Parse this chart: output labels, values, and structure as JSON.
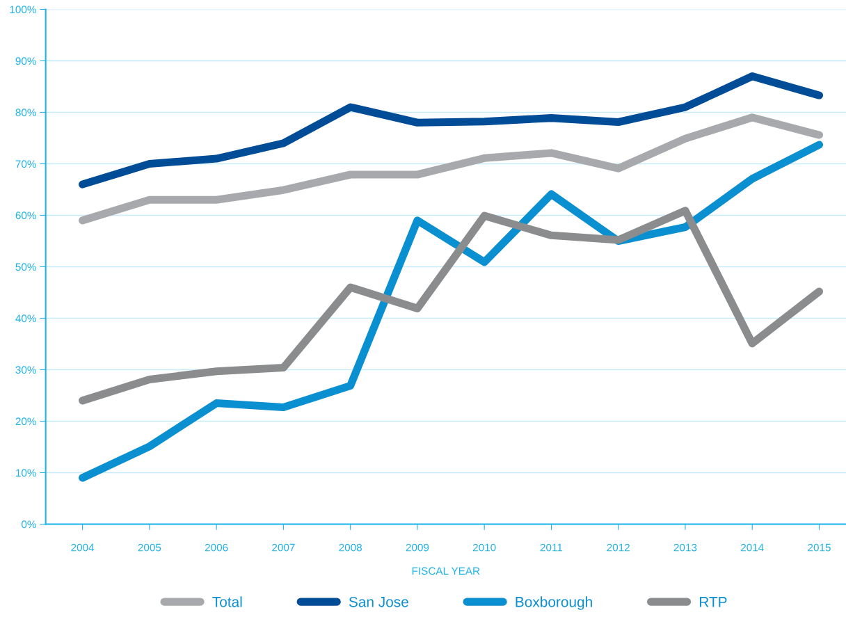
{
  "chart_data": {
    "type": "line",
    "xlabel": "FISCAL YEAR",
    "categories": [
      "2004",
      "2005",
      "2006",
      "2007",
      "2008",
      "2009",
      "2010",
      "2011",
      "2012",
      "2013",
      "2014",
      "2015"
    ],
    "series": [
      {
        "name": "Total",
        "color": "#a7a9ac",
        "values": [
          59.0,
          63.0,
          63.0,
          64.9,
          67.9,
          67.9,
          71.1,
          72.1,
          69.1,
          74.9,
          79.0,
          75.6
        ]
      },
      {
        "name": "San Jose",
        "color": "#004c97",
        "values": [
          66.0,
          70.0,
          71.0,
          74.0,
          81.0,
          78.0,
          78.2,
          78.9,
          78.1,
          81.0,
          87.0,
          83.3
        ]
      },
      {
        "name": "Boxborough",
        "color": "#0a8fd0",
        "values": [
          9.0,
          15.1,
          23.5,
          22.7,
          26.9,
          59.0,
          50.9,
          64.1,
          55.0,
          57.7,
          67.1,
          73.7
        ]
      },
      {
        "name": "RTP",
        "color": "#8a8c8e",
        "values": [
          24.0,
          28.1,
          29.7,
          30.4,
          46.0,
          41.9,
          59.9,
          56.1,
          55.2,
          60.9,
          35.1,
          45.2
        ]
      }
    ],
    "ylim": [
      0,
      100
    ],
    "yticks": [
      {
        "value": 0,
        "label": "0%"
      },
      {
        "value": 10,
        "label": "10%"
      },
      {
        "value": 20,
        "label": "20%"
      },
      {
        "value": 30,
        "label": "30%"
      },
      {
        "value": 40,
        "label": "40%"
      },
      {
        "value": 50,
        "label": "50%"
      },
      {
        "value": 60,
        "label": "60%"
      },
      {
        "value": 70,
        "label": "70%"
      },
      {
        "value": 80,
        "label": "80%"
      },
      {
        "value": 90,
        "label": "90%"
      },
      {
        "value": 100,
        "label": "100%"
      }
    ],
    "grid": "y",
    "legend": "bottom",
    "marker": "none",
    "line_style": "solid"
  }
}
